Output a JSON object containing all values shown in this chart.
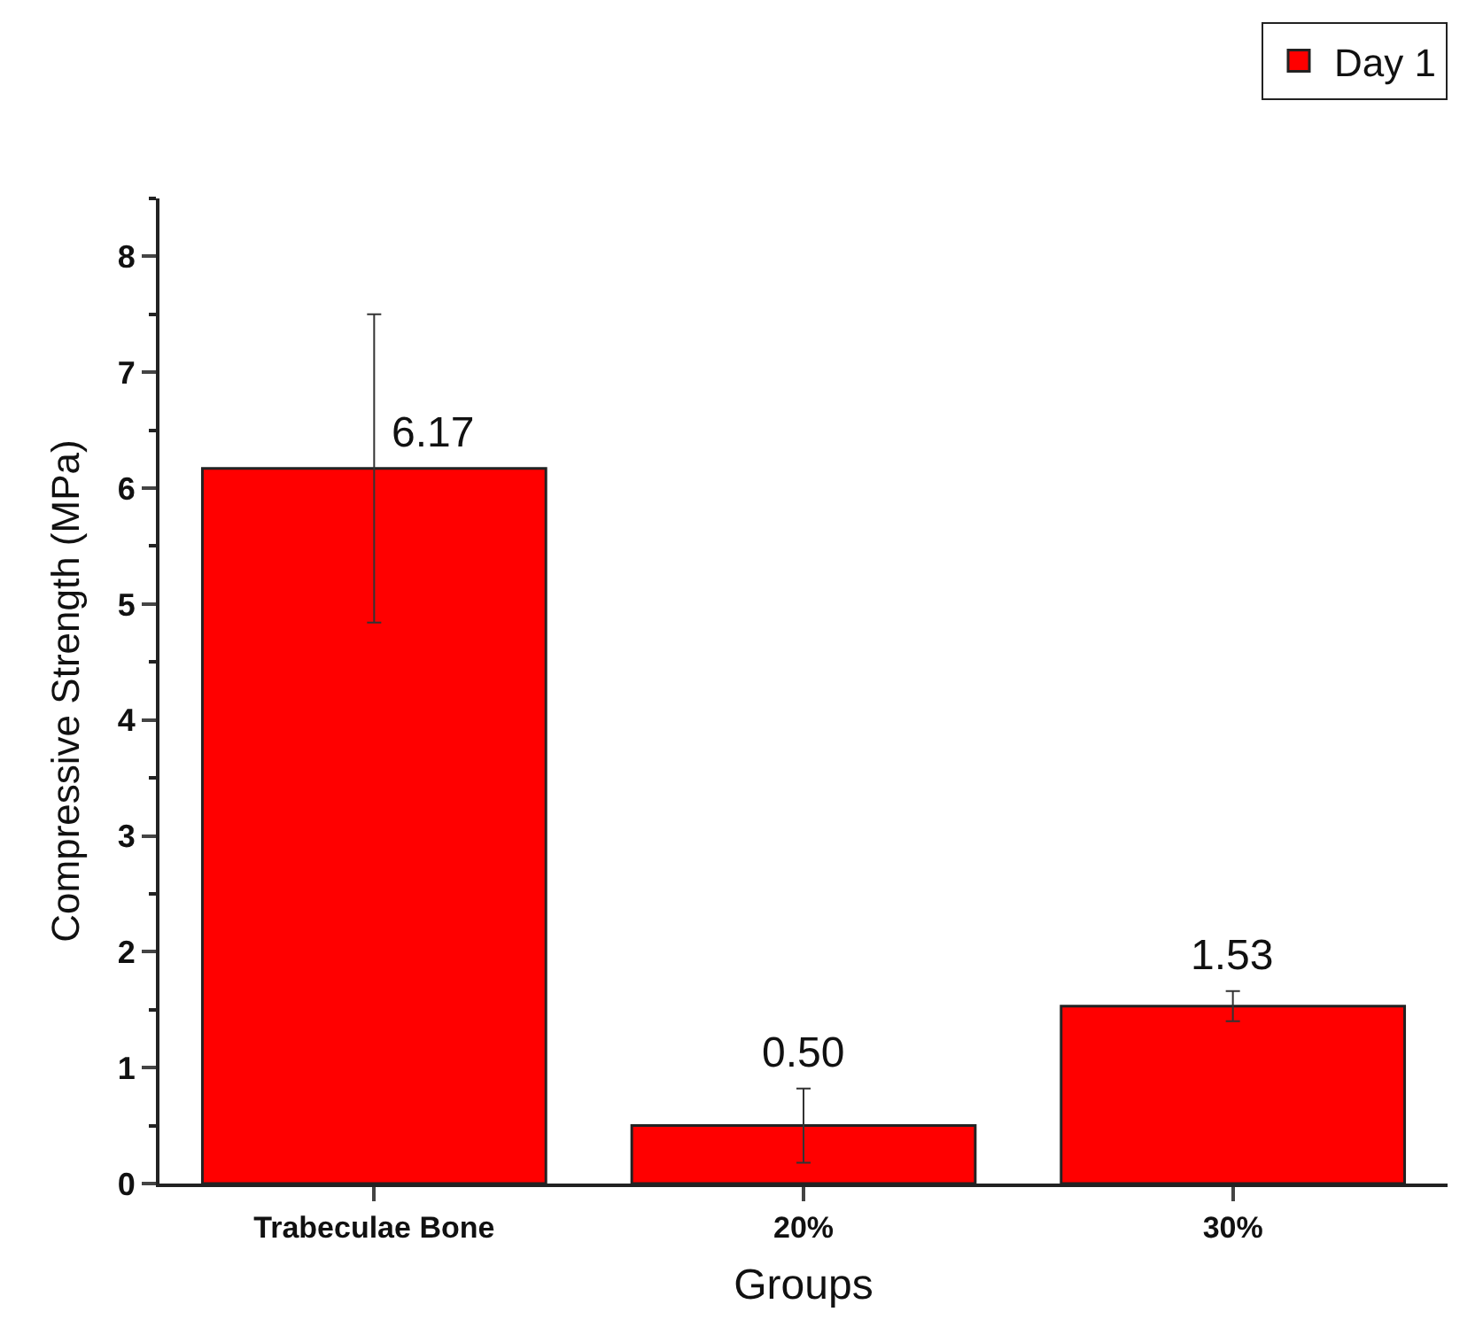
{
  "chart_data": {
    "type": "bar",
    "xlabel": "Groups",
    "ylabel": "Compressive Strength (MPa)",
    "categories": [
      "Trabeculae Bone",
      "20%",
      "30%"
    ],
    "series": [
      {
        "name": "Day 1",
        "color": "#ff0000",
        "values": [
          6.17,
          0.5,
          1.53
        ],
        "errors": [
          1.33,
          0.32,
          0.13
        ],
        "value_labels": [
          "6.17",
          "0.50",
          "1.53"
        ]
      }
    ],
    "ylim": [
      0,
      8.5
    ],
    "yticks": [
      0,
      1,
      2,
      3,
      4,
      5,
      6,
      7,
      8
    ],
    "legend": "top right"
  }
}
